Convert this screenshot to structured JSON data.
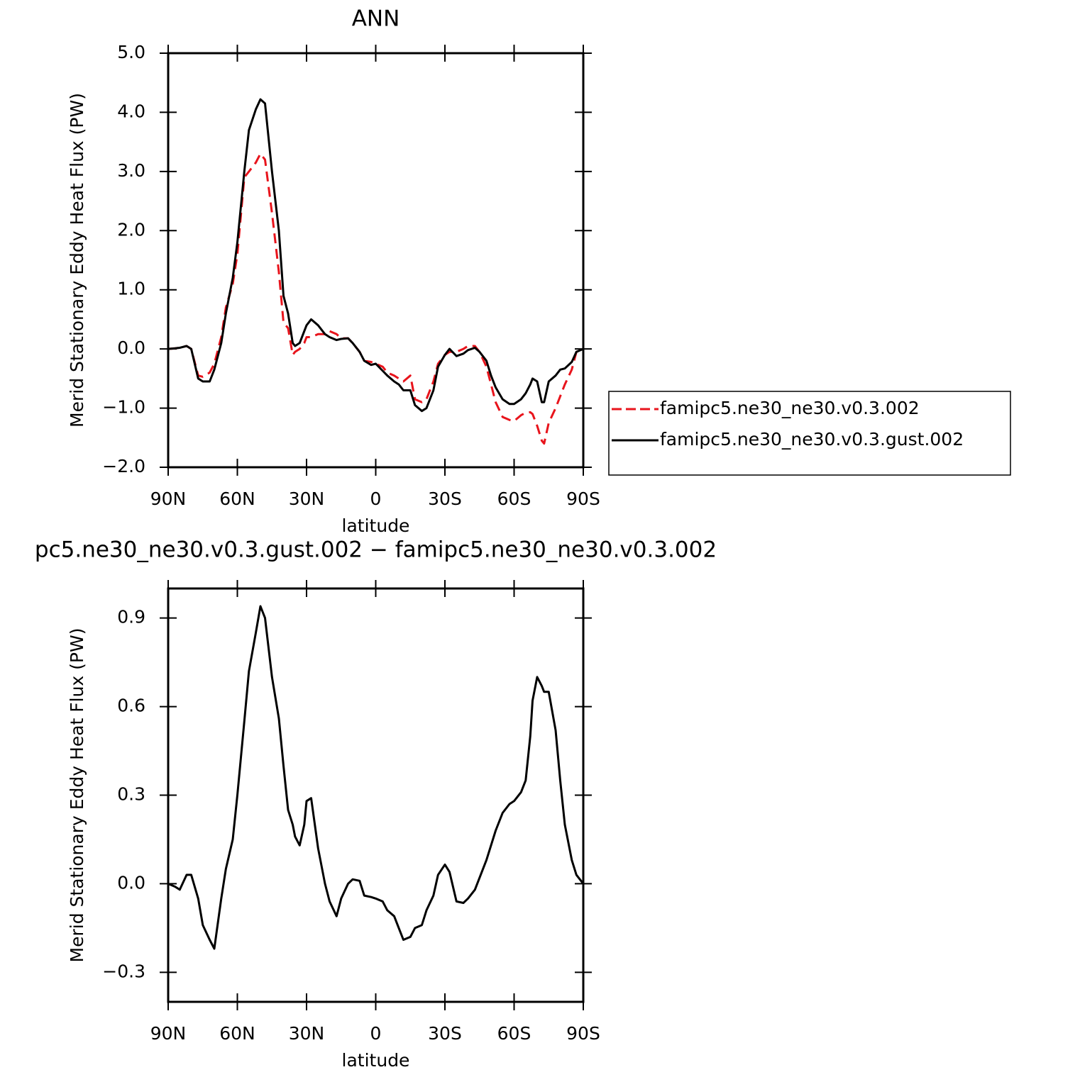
{
  "chart_data": [
    {
      "type": "line",
      "title": "ANN",
      "x_label": "latitude",
      "y_label": "Merid Stationary Eddy Heat Flux (PW)",
      "x": [
        90,
        87,
        85,
        82,
        80,
        77,
        75,
        72,
        70,
        67,
        65,
        62,
        60,
        57,
        55,
        52,
        50,
        48,
        45,
        42,
        40,
        38,
        36,
        35,
        33,
        31,
        30,
        28,
        25,
        22,
        20,
        17,
        15,
        12,
        10,
        7,
        5,
        2,
        0,
        -3,
        -5,
        -8,
        -10,
        -12,
        -15,
        -17,
        -20,
        -22,
        -25,
        -27,
        -30,
        -32,
        -35,
        -38,
        -40,
        -43,
        -45,
        -48,
        -50,
        -52,
        -55,
        -58,
        -60,
        -63,
        -65,
        -67,
        -68,
        -70,
        -72,
        -73,
        -75,
        -78,
        -80,
        -82,
        -85,
        -87,
        -90
      ],
      "series": [
        {
          "name": "famipc5.ne30_ne30.v0.3.002",
          "color": "#e8141c",
          "dashed": true,
          "values": [
            0,
            0.01,
            0.02,
            0.05,
            0,
            -0.45,
            -0.47,
            -0.4,
            -0.25,
            0.2,
            0.7,
            1.1,
            1.6,
            2.9,
            3.0,
            3.15,
            3.3,
            3.2,
            2.3,
            1.3,
            0.45,
            0.35,
            -0.1,
            -0.05,
            0.0,
            0.1,
            0.2,
            0.2,
            0.25,
            0.25,
            0.3,
            0.25,
            0.18,
            0.18,
            0.1,
            -0.05,
            -0.2,
            -0.22,
            -0.25,
            -0.3,
            -0.4,
            -0.45,
            -0.5,
            -0.55,
            -0.45,
            -0.85,
            -0.9,
            -0.85,
            -0.55,
            -0.25,
            -0.1,
            -0.05,
            -0.05,
            0.0,
            0.05,
            0.05,
            -0.05,
            -0.3,
            -0.6,
            -0.9,
            -1.15,
            -1.2,
            -1.22,
            -1.12,
            -1.08,
            -1.07,
            -1.1,
            -1.3,
            -1.55,
            -1.6,
            -1.25,
            -1.0,
            -0.8,
            -0.6,
            -0.35,
            -0.05,
            0
          ]
        },
        {
          "name": "famipc5.ne30_ne30.v0.3.gust.002",
          "color": "#000000",
          "dashed": false,
          "values": [
            0,
            0.01,
            0.02,
            0.05,
            0,
            -0.5,
            -0.55,
            -0.55,
            -0.35,
            0.1,
            0.6,
            1.2,
            1.8,
            3.0,
            3.7,
            4.05,
            4.22,
            4.15,
            3.0,
            2.0,
            0.9,
            0.6,
            0.1,
            0.05,
            0.1,
            0.3,
            0.4,
            0.5,
            0.4,
            0.25,
            0.2,
            0.15,
            0.17,
            0.18,
            0.1,
            -0.05,
            -0.2,
            -0.27,
            -0.25,
            -0.37,
            -0.45,
            -0.55,
            -0.6,
            -0.7,
            -0.7,
            -0.95,
            -1.05,
            -1.0,
            -0.7,
            -0.3,
            -0.1,
            0.0,
            -0.12,
            -0.08,
            -0.02,
            0.02,
            -0.05,
            -0.2,
            -0.45,
            -0.65,
            -0.85,
            -0.93,
            -0.93,
            -0.85,
            -0.75,
            -0.6,
            -0.5,
            -0.55,
            -0.9,
            -0.9,
            -0.55,
            -0.45,
            -0.35,
            -0.33,
            -0.22,
            -0.05,
            0
          ]
        }
      ],
      "xlim": [
        90,
        -90
      ],
      "xticks": [
        {
          "value": 90,
          "label": "90N"
        },
        {
          "value": 60,
          "label": "60N"
        },
        {
          "value": 30,
          "label": "30N"
        },
        0,
        {
          "value": -30,
          "label": "30S"
        },
        {
          "value": -60,
          "label": "60S"
        },
        {
          "value": -90,
          "label": "90S"
        }
      ],
      "ylim": [
        -2,
        5
      ],
      "yticks": [
        {
          "value": -2,
          "label": "−2.0"
        },
        {
          "value": -1,
          "label": "−1.0"
        },
        {
          "value": 0,
          "label": "0.0"
        },
        {
          "value": 1,
          "label": "1.0"
        },
        {
          "value": 2,
          "label": "2.0"
        },
        {
          "value": 3,
          "label": "3.0"
        },
        {
          "value": 4,
          "label": "4.0"
        },
        {
          "value": 5,
          "label": "5.0"
        }
      ],
      "legend": "right"
    },
    {
      "type": "line",
      "title": "pc5.ne30_ne30.v0.3.gust.002 − famipc5.ne30_ne30.v0.3.002",
      "x_label": "latitude",
      "y_label": "Merid Stationary Eddy Heat Flux (PW)",
      "x": [
        90,
        87,
        85,
        82,
        80,
        77,
        75,
        72,
        70,
        67,
        65,
        62,
        60,
        57,
        55,
        52,
        50,
        48,
        45,
        42,
        40,
        38,
        36,
        35,
        33,
        31,
        30,
        28,
        25,
        22,
        20,
        17,
        15,
        12,
        10,
        7,
        5,
        2,
        0,
        -3,
        -5,
        -8,
        -10,
        -12,
        -15,
        -17,
        -20,
        -22,
        -25,
        -27,
        -30,
        -32,
        -35,
        -38,
        -40,
        -43,
        -45,
        -48,
        -50,
        -52,
        -55,
        -58,
        -60,
        -63,
        -65,
        -67,
        -68,
        -70,
        -72,
        -73,
        -75,
        -78,
        -80,
        -82,
        -85,
        -87,
        -90
      ],
      "color": "#000000",
      "values": [
        0,
        -0.01,
        -0.02,
        0.03,
        0.03,
        -0.05,
        -0.14,
        -0.19,
        -0.22,
        -0.05,
        0.05,
        0.15,
        0.3,
        0.55,
        0.72,
        0.85,
        0.94,
        0.9,
        0.7,
        0.56,
        0.4,
        0.25,
        0.2,
        0.16,
        0.13,
        0.2,
        0.28,
        0.29,
        0.12,
        0.0,
        -0.06,
        -0.11,
        -0.05,
        0.0,
        0.015,
        0.01,
        -0.04,
        -0.045,
        -0.05,
        -0.06,
        -0.09,
        -0.11,
        -0.15,
        -0.19,
        -0.18,
        -0.15,
        -0.14,
        -0.09,
        -0.04,
        0.03,
        0.065,
        0.04,
        -0.06,
        -0.065,
        -0.05,
        -0.02,
        0.02,
        0.08,
        0.13,
        0.18,
        0.24,
        0.27,
        0.28,
        0.31,
        0.35,
        0.5,
        0.62,
        0.7,
        0.67,
        0.65,
        0.65,
        0.52,
        0.35,
        0.2,
        0.08,
        0.03,
        0
      ],
      "xlim": [
        90,
        -90
      ],
      "xticks": [
        {
          "value": 90,
          "label": "90N"
        },
        {
          "value": 60,
          "label": "60N"
        },
        {
          "value": 30,
          "label": "30N"
        },
        0,
        {
          "value": -30,
          "label": "30S"
        },
        {
          "value": -60,
          "label": "60S"
        },
        {
          "value": -90,
          "label": "90S"
        }
      ],
      "ylim": [
        -0.4,
        1.0
      ],
      "yticks": [
        {
          "value": -0.3,
          "label": "−0.3"
        },
        {
          "value": 0,
          "label": "0.0"
        },
        0.3,
        0.6,
        0.9
      ]
    }
  ]
}
